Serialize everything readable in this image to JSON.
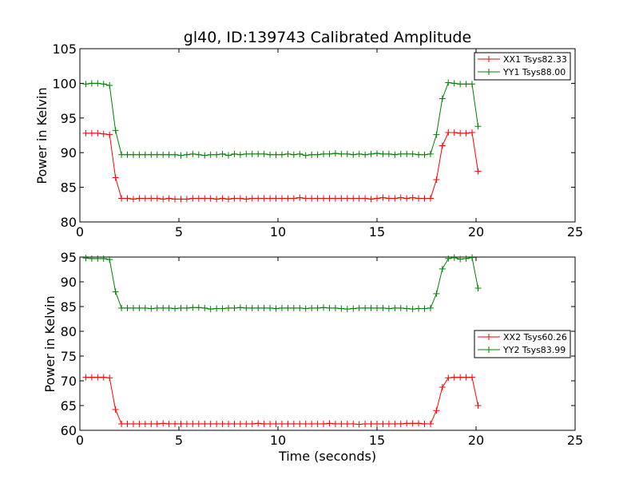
{
  "chart_data": [
    {
      "type": "line",
      "title": "gl40, ID:139743 Calibrated Amplitude",
      "xlabel": "",
      "ylabel": "Power in Kelvin",
      "xlim": [
        0,
        25
      ],
      "ylim": [
        80,
        105
      ],
      "xticks": [
        0,
        5,
        10,
        15,
        20,
        25
      ],
      "yticks": [
        80,
        85,
        90,
        95,
        100,
        105
      ],
      "legend_position": "top-right",
      "x": [
        0.3,
        0.6,
        0.9,
        1.2,
        1.5,
        1.8,
        2.1,
        2.4,
        2.7,
        3.0,
        3.3,
        3.6,
        3.9,
        4.2,
        4.5,
        4.8,
        5.1,
        5.4,
        5.7,
        6.0,
        6.3,
        6.6,
        6.9,
        7.2,
        7.5,
        7.8,
        8.1,
        8.4,
        8.7,
        9.0,
        9.3,
        9.6,
        9.9,
        10.2,
        10.5,
        10.8,
        11.1,
        11.4,
        11.7,
        12.0,
        12.3,
        12.6,
        12.9,
        13.2,
        13.5,
        13.8,
        14.1,
        14.4,
        14.7,
        15.0,
        15.3,
        15.6,
        15.9,
        16.2,
        16.5,
        16.8,
        17.1,
        17.4,
        17.7,
        18.0,
        18.3,
        18.6,
        18.9,
        19.2,
        19.5,
        19.8,
        20.1
      ],
      "series": [
        {
          "name": "XX1 Tsys82.33",
          "color": "#ff0000",
          "values": [
            92.8,
            92.8,
            92.8,
            92.7,
            92.6,
            86.4,
            83.4,
            83.4,
            83.3,
            83.4,
            83.4,
            83.4,
            83.4,
            83.3,
            83.4,
            83.3,
            83.3,
            83.3,
            83.4,
            83.4,
            83.4,
            83.4,
            83.3,
            83.4,
            83.3,
            83.4,
            83.4,
            83.3,
            83.4,
            83.4,
            83.4,
            83.4,
            83.4,
            83.4,
            83.4,
            83.4,
            83.5,
            83.4,
            83.4,
            83.4,
            83.4,
            83.4,
            83.4,
            83.4,
            83.4,
            83.4,
            83.4,
            83.4,
            83.3,
            83.4,
            83.5,
            83.4,
            83.4,
            83.5,
            83.4,
            83.5,
            83.4,
            83.4,
            83.4,
            86.1,
            91.0,
            92.9,
            92.9,
            92.8,
            92.8,
            92.9,
            87.3
          ]
        },
        {
          "name": "YY1 Tsys88.00",
          "color": "#008000",
          "values": [
            99.9,
            100.0,
            100.0,
            99.9,
            99.7,
            93.2,
            89.7,
            89.7,
            89.7,
            89.7,
            89.7,
            89.7,
            89.7,
            89.7,
            89.7,
            89.7,
            89.6,
            89.7,
            89.8,
            89.7,
            89.6,
            89.7,
            89.7,
            89.8,
            89.6,
            89.8,
            89.7,
            89.8,
            89.8,
            89.8,
            89.8,
            89.7,
            89.7,
            89.7,
            89.8,
            89.7,
            89.8,
            89.6,
            89.7,
            89.7,
            89.8,
            89.8,
            89.9,
            89.8,
            89.8,
            89.7,
            89.8,
            89.7,
            89.8,
            89.9,
            89.8,
            89.8,
            89.7,
            89.8,
            89.8,
            89.8,
            89.7,
            89.7,
            89.8,
            92.6,
            97.8,
            100.1,
            100.0,
            99.9,
            99.9,
            99.9,
            93.8
          ]
        }
      ]
    },
    {
      "type": "line",
      "title": "",
      "xlabel": "Time (seconds)",
      "ylabel": "Power in Kelvin",
      "xlim": [
        0,
        25
      ],
      "ylim": [
        60,
        95
      ],
      "xticks": [
        0,
        5,
        10,
        15,
        20,
        25
      ],
      "yticks": [
        60,
        65,
        70,
        75,
        80,
        85,
        90,
        95
      ],
      "legend_position": "center-right",
      "x": [
        0.3,
        0.6,
        0.9,
        1.2,
        1.5,
        1.8,
        2.1,
        2.4,
        2.7,
        3.0,
        3.3,
        3.6,
        3.9,
        4.2,
        4.5,
        4.8,
        5.1,
        5.4,
        5.7,
        6.0,
        6.3,
        6.6,
        6.9,
        7.2,
        7.5,
        7.8,
        8.1,
        8.4,
        8.7,
        9.0,
        9.3,
        9.6,
        9.9,
        10.2,
        10.5,
        10.8,
        11.1,
        11.4,
        11.7,
        12.0,
        12.3,
        12.6,
        12.9,
        13.2,
        13.5,
        13.8,
        14.1,
        14.4,
        14.7,
        15.0,
        15.3,
        15.6,
        15.9,
        16.2,
        16.5,
        16.8,
        17.1,
        17.4,
        17.7,
        18.0,
        18.3,
        18.6,
        18.9,
        19.2,
        19.5,
        19.8,
        20.1
      ],
      "series": [
        {
          "name": "XX2 Tsys60.26",
          "color": "#ff0000",
          "values": [
            70.7,
            70.7,
            70.7,
            70.7,
            70.6,
            64.2,
            61.3,
            61.3,
            61.3,
            61.3,
            61.3,
            61.3,
            61.3,
            61.4,
            61.3,
            61.3,
            61.3,
            61.3,
            61.3,
            61.3,
            61.3,
            61.3,
            61.3,
            61.3,
            61.3,
            61.3,
            61.3,
            61.3,
            61.3,
            61.4,
            61.3,
            61.3,
            61.3,
            61.3,
            61.3,
            61.3,
            61.3,
            61.3,
            61.3,
            61.3,
            61.3,
            61.4,
            61.3,
            61.3,
            61.3,
            61.3,
            61.2,
            61.3,
            61.3,
            61.3,
            61.3,
            61.3,
            61.3,
            61.3,
            61.4,
            61.4,
            61.4,
            61.3,
            61.3,
            64.0,
            68.7,
            70.6,
            70.7,
            70.7,
            70.7,
            70.7,
            65.0
          ]
        },
        {
          "name": "YY2 Tsys83.99",
          "color": "#008000",
          "values": [
            94.8,
            94.7,
            94.7,
            94.7,
            94.5,
            88.0,
            84.7,
            84.7,
            84.7,
            84.7,
            84.7,
            84.6,
            84.7,
            84.7,
            84.7,
            84.6,
            84.7,
            84.7,
            84.8,
            84.8,
            84.7,
            84.5,
            84.6,
            84.6,
            84.7,
            84.7,
            84.8,
            84.7,
            84.7,
            84.7,
            84.7,
            84.7,
            84.6,
            84.7,
            84.7,
            84.7,
            84.7,
            84.6,
            84.7,
            84.7,
            84.8,
            84.7,
            84.7,
            84.6,
            84.5,
            84.6,
            84.7,
            84.7,
            84.7,
            84.7,
            84.7,
            84.6,
            84.7,
            84.7,
            84.6,
            84.5,
            84.6,
            84.6,
            84.7,
            87.6,
            92.6,
            94.7,
            94.9,
            94.6,
            94.7,
            94.9,
            88.7
          ]
        }
      ]
    }
  ]
}
